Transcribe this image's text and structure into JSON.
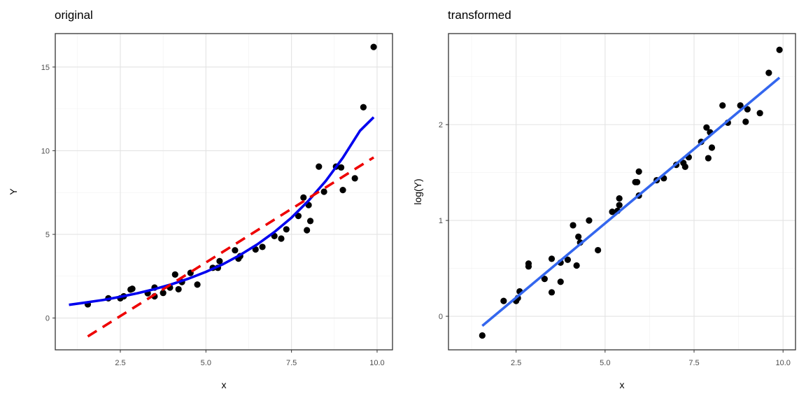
{
  "chart_data": [
    {
      "type": "scatter",
      "title": "original",
      "xlabel": "x",
      "ylabel": "Y",
      "xlim": [
        0.6,
        10.45
      ],
      "ylim": [
        -1.9,
        17.0
      ],
      "xticks": [
        2.5,
        5.0,
        7.5,
        10.0
      ],
      "xtick_labels": [
        "2.5",
        "5.0",
        "7.5",
        "10.0"
      ],
      "yticks": [
        0,
        5,
        10,
        15
      ],
      "ytick_labels": [
        "0",
        "5",
        "10",
        "15"
      ],
      "grid": true,
      "colors": {
        "points": "#000000",
        "exp_fit": "#0000ee",
        "linear_fit": "#ee0000"
      },
      "series": [
        {
          "type": "scatter",
          "x": [
            1.55,
            2.15,
            2.5,
            2.6,
            2.8,
            2.85,
            3.3,
            3.5,
            3.5,
            3.75,
            3.95,
            4.1,
            4.2,
            4.3,
            4.55,
            4.75,
            5.2,
            5.35,
            5.4,
            5.85,
            5.95,
            6.0,
            6.45,
            6.65,
            7.0,
            7.2,
            7.35,
            7.7,
            7.85,
            7.95,
            8.0,
            8.05,
            8.3,
            8.45,
            8.8,
            8.95,
            9.0,
            9.35,
            9.6,
            9.9
          ],
          "y": [
            0.82,
            1.18,
            1.18,
            1.3,
            1.7,
            1.75,
            1.48,
            1.82,
            1.3,
            1.5,
            1.82,
            2.6,
            1.72,
            2.15,
            2.7,
            2.0,
            3.0,
            3.0,
            3.4,
            4.05,
            3.55,
            3.7,
            4.1,
            4.25,
            4.9,
            4.75,
            5.3,
            6.1,
            7.2,
            5.25,
            6.75,
            5.8,
            9.05,
            7.55,
            9.05,
            9.0,
            7.65,
            8.35,
            12.6,
            16.2
          ]
        },
        {
          "type": "line",
          "style": "solid",
          "x": [
            1.0,
            1.5,
            2.0,
            2.5,
            3.0,
            3.5,
            4.0,
            4.5,
            5.0,
            5.5,
            6.0,
            6.5,
            7.0,
            7.5,
            8.0,
            8.5,
            9.0,
            9.5,
            9.9
          ],
          "y": [
            0.79,
            0.93,
            1.08,
            1.27,
            1.48,
            1.73,
            2.02,
            2.36,
            2.76,
            3.22,
            3.77,
            4.4,
            5.14,
            6.0,
            7.02,
            8.19,
            9.58,
            11.19,
            12.0
          ]
        },
        {
          "type": "line",
          "style": "dashed",
          "x": [
            1.55,
            9.9
          ],
          "y": [
            -1.1,
            9.6
          ]
        }
      ]
    },
    {
      "type": "scatter",
      "title": "transformed",
      "xlabel": "x",
      "ylabel": "log(Y)",
      "xlim": [
        0.6,
        10.35
      ],
      "ylim": [
        -0.35,
        2.95
      ],
      "xticks": [
        2.5,
        5.0,
        7.5,
        10.0
      ],
      "xtick_labels": [
        "2.5",
        "5.0",
        "7.5",
        "10.0"
      ],
      "yticks": [
        0,
        1,
        2
      ],
      "ytick_labels": [
        "0",
        "1",
        "2"
      ],
      "grid": true,
      "colors": {
        "points": "#000000",
        "fit": "#3366ee"
      },
      "series": [
        {
          "type": "scatter",
          "x": [
            1.55,
            2.15,
            2.5,
            2.55,
            2.6,
            2.85,
            2.85,
            3.3,
            3.5,
            3.5,
            3.75,
            3.75,
            3.95,
            4.1,
            4.2,
            4.25,
            4.3,
            4.55,
            4.8,
            5.2,
            5.35,
            5.4,
            5.4,
            5.85,
            5.9,
            5.95,
            5.95,
            6.45,
            6.65,
            7.0,
            7.2,
            7.25,
            7.35,
            7.7,
            7.85,
            7.9,
            7.95,
            8.0,
            8.3,
            8.45,
            8.8,
            8.95,
            9.0,
            9.35,
            9.6,
            9.9
          ],
          "y": [
            -0.2,
            0.16,
            0.16,
            0.19,
            0.26,
            0.52,
            0.55,
            0.39,
            0.6,
            0.25,
            0.36,
            0.56,
            0.59,
            0.95,
            0.53,
            0.83,
            0.77,
            1.0,
            0.69,
            1.09,
            1.1,
            1.16,
            1.23,
            1.4,
            1.4,
            1.26,
            1.51,
            1.42,
            1.44,
            1.58,
            1.6,
            1.56,
            1.66,
            1.82,
            1.97,
            1.65,
            1.92,
            1.76,
            2.2,
            2.02,
            2.2,
            2.03,
            2.16,
            2.12,
            2.54,
            2.78
          ]
        },
        {
          "type": "line",
          "style": "solid",
          "x": [
            1.55,
            9.9
          ],
          "y": [
            -0.1,
            2.49
          ]
        }
      ]
    }
  ]
}
